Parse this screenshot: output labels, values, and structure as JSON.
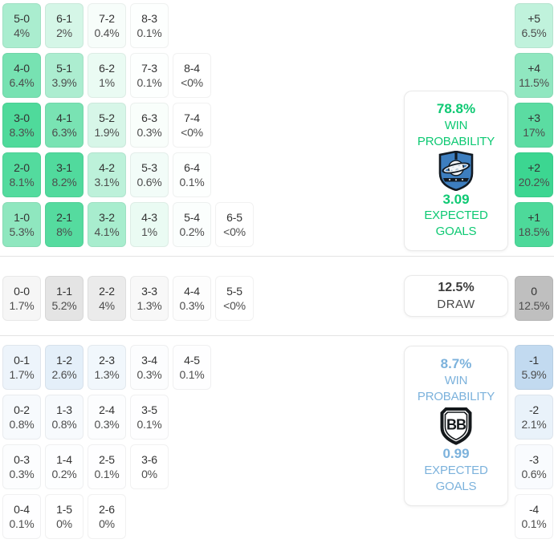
{
  "colors": {
    "home_base": "#2BD287",
    "draw_base": "#7A7A7A",
    "away_base": "#82B4E1",
    "home_text": "#0EC973",
    "away_text": "#7CB2DC",
    "grid_scales": {
      "home": 10,
      "draw": 26,
      "away": 12
    },
    "diff_scales": {
      "home": 22,
      "draw": 26,
      "away": 12
    }
  },
  "score_grid": {
    "home_rows": [
      [
        {
          "score": "5-0",
          "pct": "4%",
          "value": 4
        },
        {
          "score": "6-1",
          "pct": "2%",
          "value": 2
        },
        {
          "score": "7-2",
          "pct": "0.4%",
          "value": 0.4
        },
        {
          "score": "8-3",
          "pct": "0.1%",
          "value": 0.1
        }
      ],
      [
        {
          "score": "4-0",
          "pct": "6.4%",
          "value": 6.4
        },
        {
          "score": "5-1",
          "pct": "3.9%",
          "value": 3.9
        },
        {
          "score": "6-2",
          "pct": "1%",
          "value": 1
        },
        {
          "score": "7-3",
          "pct": "0.1%",
          "value": 0.1
        },
        {
          "score": "8-4",
          "pct": "<0%",
          "value": 0
        }
      ],
      [
        {
          "score": "3-0",
          "pct": "8.3%",
          "value": 8.3
        },
        {
          "score": "4-1",
          "pct": "6.3%",
          "value": 6.3
        },
        {
          "score": "5-2",
          "pct": "1.9%",
          "value": 1.9
        },
        {
          "score": "6-3",
          "pct": "0.3%",
          "value": 0.3
        },
        {
          "score": "7-4",
          "pct": "<0%",
          "value": 0
        }
      ],
      [
        {
          "score": "2-0",
          "pct": "8.1%",
          "value": 8.1
        },
        {
          "score": "3-1",
          "pct": "8.2%",
          "value": 8.2
        },
        {
          "score": "4-2",
          "pct": "3.1%",
          "value": 3.1
        },
        {
          "score": "5-3",
          "pct": "0.6%",
          "value": 0.6
        },
        {
          "score": "6-4",
          "pct": "0.1%",
          "value": 0.1
        }
      ],
      [
        {
          "score": "1-0",
          "pct": "5.3%",
          "value": 5.3
        },
        {
          "score": "2-1",
          "pct": "8%",
          "value": 8
        },
        {
          "score": "3-2",
          "pct": "4.1%",
          "value": 4.1
        },
        {
          "score": "4-3",
          "pct": "1%",
          "value": 1
        },
        {
          "score": "5-4",
          "pct": "0.2%",
          "value": 0.2
        },
        {
          "score": "6-5",
          "pct": "<0%",
          "value": 0
        }
      ]
    ],
    "draw_row": [
      {
        "score": "0-0",
        "pct": "1.7%",
        "value": 1.7
      },
      {
        "score": "1-1",
        "pct": "5.2%",
        "value": 5.2
      },
      {
        "score": "2-2",
        "pct": "4%",
        "value": 4
      },
      {
        "score": "3-3",
        "pct": "1.3%",
        "value": 1.3
      },
      {
        "score": "4-4",
        "pct": "0.3%",
        "value": 0.3
      },
      {
        "score": "5-5",
        "pct": "<0%",
        "value": 0
      }
    ],
    "away_rows": [
      [
        {
          "score": "0-1",
          "pct": "1.7%",
          "value": 1.7
        },
        {
          "score": "1-2",
          "pct": "2.6%",
          "value": 2.6
        },
        {
          "score": "2-3",
          "pct": "1.3%",
          "value": 1.3
        },
        {
          "score": "3-4",
          "pct": "0.3%",
          "value": 0.3
        },
        {
          "score": "4-5",
          "pct": "0.1%",
          "value": 0.1
        }
      ],
      [
        {
          "score": "0-2",
          "pct": "0.8%",
          "value": 0.8
        },
        {
          "score": "1-3",
          "pct": "0.8%",
          "value": 0.8
        },
        {
          "score": "2-4",
          "pct": "0.3%",
          "value": 0.3
        },
        {
          "score": "3-5",
          "pct": "0.1%",
          "value": 0.1
        }
      ],
      [
        {
          "score": "0-3",
          "pct": "0.3%",
          "value": 0.3
        },
        {
          "score": "1-4",
          "pct": "0.2%",
          "value": 0.2
        },
        {
          "score": "2-5",
          "pct": "0.1%",
          "value": 0.1
        },
        {
          "score": "3-6",
          "pct": "0%",
          "value": 0
        }
      ],
      [
        {
          "score": "0-4",
          "pct": "0.1%",
          "value": 0.1
        },
        {
          "score": "1-5",
          "pct": "0%",
          "value": 0
        },
        {
          "score": "2-6",
          "pct": "0%",
          "value": 0
        }
      ]
    ]
  },
  "diff_column": {
    "home": [
      {
        "label": "+5",
        "pct": "6.5%",
        "value": 6.5
      },
      {
        "label": "+4",
        "pct": "11.5%",
        "value": 11.5
      },
      {
        "label": "+3",
        "pct": "17%",
        "value": 17
      },
      {
        "label": "+2",
        "pct": "20.2%",
        "value": 20.2
      },
      {
        "label": "+1",
        "pct": "18.5%",
        "value": 18.5
      }
    ],
    "draw": {
      "label": "0",
      "pct": "12.5%",
      "value": 12.5
    },
    "away": [
      {
        "label": "-1",
        "pct": "5.9%",
        "value": 5.9
      },
      {
        "label": "-2",
        "pct": "2.1%",
        "value": 2.1
      },
      {
        "label": "-3",
        "pct": "0.6%",
        "value": 0.6
      },
      {
        "label": "-4",
        "pct": "0.1%",
        "value": 0.1
      }
    ]
  },
  "cards": {
    "home": {
      "win_pct": "78.8%",
      "win_label": "WIN PROBABILITY",
      "crest": "home-team-crest",
      "xg": "3.09",
      "xg_label": "EXPECTED GOALS"
    },
    "draw": {
      "pct": "12.5%",
      "label": "DRAW"
    },
    "away": {
      "win_pct": "8.7%",
      "win_label": "WIN PROBABILITY",
      "crest": "away-team-crest",
      "xg": "0.99",
      "xg_label": "EXPECTED GOALS"
    }
  }
}
